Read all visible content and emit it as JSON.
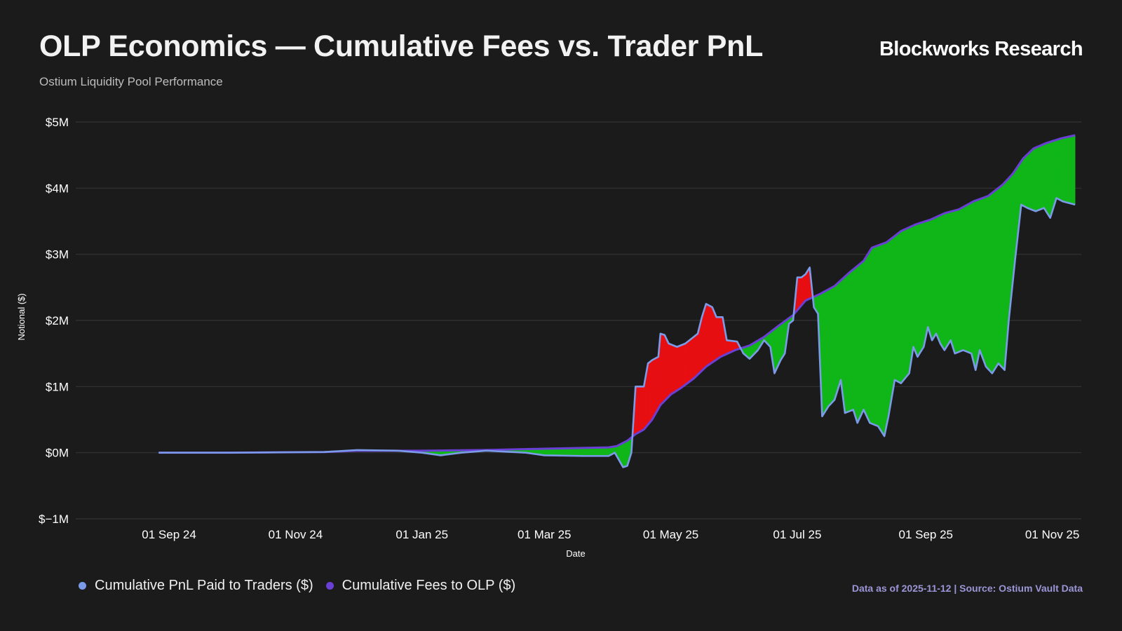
{
  "header": {
    "title": "OLP Economics — Cumulative Fees vs. Trader PnL",
    "subtitle": "Ostium Liquidity Pool Performance",
    "brand": "Blockworks Research"
  },
  "footer": {
    "source": "Data as of 2025-11-12 | Source: Ostium Vault Data"
  },
  "chart_data": {
    "type": "line",
    "title": "OLP Economics — Cumulative Fees vs. Trader PnL",
    "subtitle": "Ostium Liquidity Pool Performance",
    "xlabel": "Date",
    "ylabel": "Notional ($)",
    "x_range": [
      "2024-07-18",
      "2025-11-15"
    ],
    "ylim": [
      -1,
      5
    ],
    "y_unit": "millions USD",
    "y_ticks": [
      {
        "value": 5,
        "label": "$5M"
      },
      {
        "value": 4,
        "label": "$4M"
      },
      {
        "value": 3,
        "label": "$3M"
      },
      {
        "value": 2,
        "label": "$2M"
      },
      {
        "value": 1,
        "label": "$1M"
      },
      {
        "value": 0,
        "label": "$0M"
      },
      {
        "value": -1,
        "label": "$−1M"
      }
    ],
    "x_ticks": [
      {
        "date": "2024-09-01",
        "label": "01 Sep 24"
      },
      {
        "date": "2024-11-01",
        "label": "01 Nov 24"
      },
      {
        "date": "2025-01-01",
        "label": "01 Jan 25"
      },
      {
        "date": "2025-03-01",
        "label": "01 Mar 25"
      },
      {
        "date": "2025-05-01",
        "label": "01 May 25"
      },
      {
        "date": "2025-07-01",
        "label": "01 Jul 25"
      },
      {
        "date": "2025-09-01",
        "label": "01 Sep 25"
      },
      {
        "date": "2025-11-01",
        "label": "01 Nov 25"
      }
    ],
    "grid": true,
    "legend_position": "bottom-left",
    "fill_colors": {
      "fees_above_pnl": "#10b619",
      "pnl_above_fees": "#e70f12"
    },
    "series": [
      {
        "name": "Cumulative PnL Paid to Traders ($)",
        "color": "#7b9ae8",
        "points": [
          [
            "2024-08-27",
            0.0
          ],
          [
            "2024-10-01",
            0.0
          ],
          [
            "2024-11-15",
            0.01
          ],
          [
            "2024-12-01",
            0.04
          ],
          [
            "2024-12-20",
            0.03
          ],
          [
            "2025-01-01",
            0.0
          ],
          [
            "2025-01-10",
            -0.04
          ],
          [
            "2025-01-20",
            0.0
          ],
          [
            "2025-02-01",
            0.03
          ],
          [
            "2025-02-20",
            0.0
          ],
          [
            "2025-03-01",
            -0.04
          ],
          [
            "2025-03-20",
            -0.05
          ],
          [
            "2025-04-01",
            -0.05
          ],
          [
            "2025-04-04",
            0.0
          ],
          [
            "2025-04-08",
            -0.22
          ],
          [
            "2025-04-10",
            -0.2
          ],
          [
            "2025-04-12",
            0.0
          ],
          [
            "2025-04-14",
            1.0
          ],
          [
            "2025-04-18",
            1.0
          ],
          [
            "2025-04-20",
            1.35
          ],
          [
            "2025-04-22",
            1.4
          ],
          [
            "2025-04-25",
            1.45
          ],
          [
            "2025-04-26",
            1.8
          ],
          [
            "2025-04-28",
            1.78
          ],
          [
            "2025-04-30",
            1.65
          ],
          [
            "2025-05-04",
            1.6
          ],
          [
            "2025-05-08",
            1.65
          ],
          [
            "2025-05-12",
            1.75
          ],
          [
            "2025-05-14",
            1.8
          ],
          [
            "2025-05-16",
            2.05
          ],
          [
            "2025-05-18",
            2.25
          ],
          [
            "2025-05-21",
            2.2
          ],
          [
            "2025-05-23",
            2.05
          ],
          [
            "2025-05-26",
            2.05
          ],
          [
            "2025-05-28",
            1.7
          ],
          [
            "2025-06-02",
            1.68
          ],
          [
            "2025-06-05",
            1.5
          ],
          [
            "2025-06-08",
            1.42
          ],
          [
            "2025-06-12",
            1.55
          ],
          [
            "2025-06-15",
            1.7
          ],
          [
            "2025-06-18",
            1.6
          ],
          [
            "2025-06-20",
            1.2
          ],
          [
            "2025-06-23",
            1.4
          ],
          [
            "2025-06-25",
            1.5
          ],
          [
            "2025-06-27",
            1.95
          ],
          [
            "2025-06-29",
            2.0
          ],
          [
            "2025-07-01",
            2.65
          ],
          [
            "2025-07-03",
            2.65
          ],
          [
            "2025-07-05",
            2.7
          ],
          [
            "2025-07-07",
            2.8
          ],
          [
            "2025-07-09",
            2.2
          ],
          [
            "2025-07-11",
            2.1
          ],
          [
            "2025-07-13",
            0.55
          ],
          [
            "2025-07-16",
            0.7
          ],
          [
            "2025-07-19",
            0.8
          ],
          [
            "2025-07-22",
            1.1
          ],
          [
            "2025-07-24",
            0.6
          ],
          [
            "2025-07-28",
            0.65
          ],
          [
            "2025-07-30",
            0.45
          ],
          [
            "2025-08-02",
            0.65
          ],
          [
            "2025-08-05",
            0.45
          ],
          [
            "2025-08-09",
            0.4
          ],
          [
            "2025-08-12",
            0.25
          ],
          [
            "2025-08-14",
            0.55
          ],
          [
            "2025-08-17",
            1.1
          ],
          [
            "2025-08-20",
            1.05
          ],
          [
            "2025-08-24",
            1.2
          ],
          [
            "2025-08-26",
            1.6
          ],
          [
            "2025-08-28",
            1.45
          ],
          [
            "2025-08-31",
            1.6
          ],
          [
            "2025-09-02",
            1.9
          ],
          [
            "2025-09-04",
            1.7
          ],
          [
            "2025-09-06",
            1.8
          ],
          [
            "2025-09-08",
            1.65
          ],
          [
            "2025-09-10",
            1.55
          ],
          [
            "2025-09-13",
            1.7
          ],
          [
            "2025-09-15",
            1.5
          ],
          [
            "2025-09-19",
            1.55
          ],
          [
            "2025-09-23",
            1.5
          ],
          [
            "2025-09-25",
            1.25
          ],
          [
            "2025-09-27",
            1.55
          ],
          [
            "2025-09-30",
            1.3
          ],
          [
            "2025-10-03",
            1.2
          ],
          [
            "2025-10-06",
            1.35
          ],
          [
            "2025-10-09",
            1.25
          ],
          [
            "2025-10-11",
            2.0
          ],
          [
            "2025-10-14",
            2.9
          ],
          [
            "2025-10-17",
            3.75
          ],
          [
            "2025-10-20",
            3.7
          ],
          [
            "2025-10-24",
            3.65
          ],
          [
            "2025-10-28",
            3.7
          ],
          [
            "2025-10-31",
            3.55
          ],
          [
            "2025-11-03",
            3.85
          ],
          [
            "2025-11-06",
            3.8
          ],
          [
            "2025-11-12",
            3.75
          ]
        ]
      },
      {
        "name": "Cumulative Fees to OLP ($)",
        "color": "#6a3fd6",
        "points": [
          [
            "2024-08-27",
            0.0
          ],
          [
            "2024-10-01",
            0.0
          ],
          [
            "2024-11-15",
            0.01
          ],
          [
            "2024-12-01",
            0.03
          ],
          [
            "2025-01-01",
            0.03
          ],
          [
            "2025-02-01",
            0.04
          ],
          [
            "2025-03-01",
            0.06
          ],
          [
            "2025-04-01",
            0.08
          ],
          [
            "2025-04-05",
            0.1
          ],
          [
            "2025-04-10",
            0.18
          ],
          [
            "2025-04-14",
            0.28
          ],
          [
            "2025-04-18",
            0.35
          ],
          [
            "2025-04-22",
            0.5
          ],
          [
            "2025-04-26",
            0.72
          ],
          [
            "2025-05-01",
            0.88
          ],
          [
            "2025-05-06",
            0.98
          ],
          [
            "2025-05-12",
            1.12
          ],
          [
            "2025-05-18",
            1.3
          ],
          [
            "2025-05-25",
            1.45
          ],
          [
            "2025-06-01",
            1.55
          ],
          [
            "2025-06-08",
            1.62
          ],
          [
            "2025-06-15",
            1.75
          ],
          [
            "2025-06-22",
            1.92
          ],
          [
            "2025-06-29",
            2.08
          ],
          [
            "2025-07-05",
            2.3
          ],
          [
            "2025-07-12",
            2.4
          ],
          [
            "2025-07-19",
            2.52
          ],
          [
            "2025-07-26",
            2.72
          ],
          [
            "2025-08-02",
            2.9
          ],
          [
            "2025-08-06",
            3.1
          ],
          [
            "2025-08-13",
            3.18
          ],
          [
            "2025-08-20",
            3.35
          ],
          [
            "2025-08-27",
            3.45
          ],
          [
            "2025-09-03",
            3.52
          ],
          [
            "2025-09-10",
            3.62
          ],
          [
            "2025-09-17",
            3.68
          ],
          [
            "2025-09-24",
            3.8
          ],
          [
            "2025-10-01",
            3.88
          ],
          [
            "2025-10-08",
            4.05
          ],
          [
            "2025-10-13",
            4.22
          ],
          [
            "2025-10-18",
            4.45
          ],
          [
            "2025-10-23",
            4.6
          ],
          [
            "2025-10-29",
            4.68
          ],
          [
            "2025-11-05",
            4.75
          ],
          [
            "2025-11-12",
            4.8
          ]
        ]
      }
    ]
  }
}
